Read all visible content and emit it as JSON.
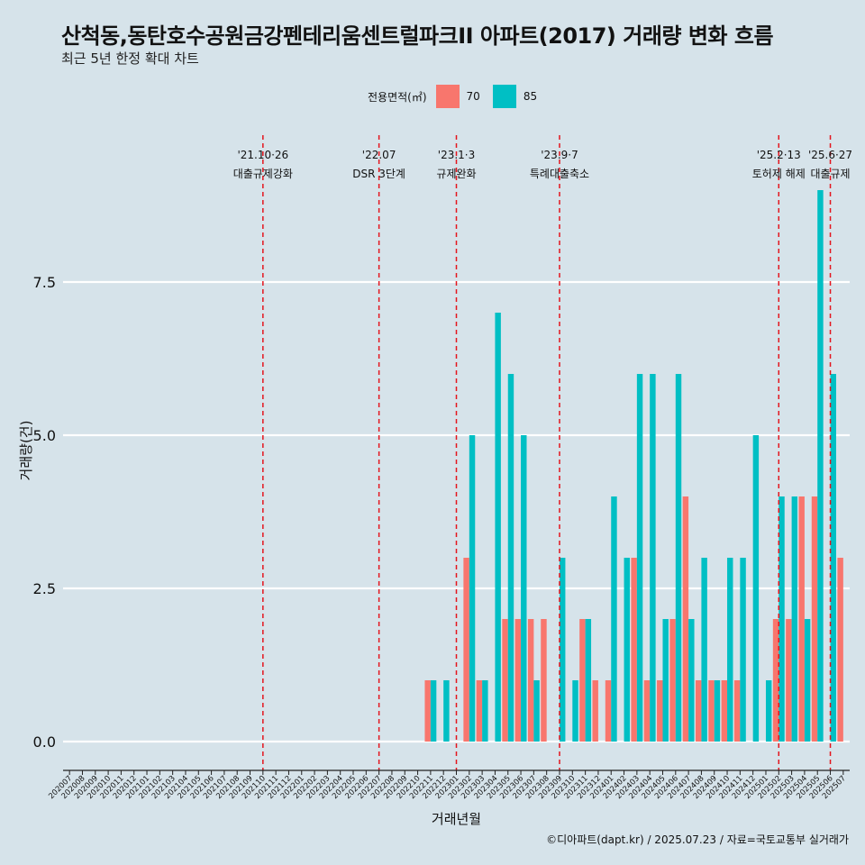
{
  "title": "산척동,동탄호수공원금강펜테리움센트럴파크II 아파트(2017) 거래량 변화 흐름",
  "subtitle": "최근 5년 한정 확대 차트",
  "legend": {
    "title": "전용면적(㎡)",
    "items": [
      {
        "label": "70",
        "color": "#f8766d"
      },
      {
        "label": "85",
        "color": "#00bfc4"
      }
    ]
  },
  "footer": "©디아파트(dapt.kr) / 2025.07.23 / 자료=국토교통부 실거래가",
  "chart_data": {
    "type": "bar",
    "title": "산척동,동탄호수공원금강펜테리움센트럴파크II 아파트(2017) 거래량 변화 흐름",
    "subtitle": "최근 5년 한정 확대 차트",
    "xlabel": "거래년월",
    "ylabel": "거래량(건)",
    "ylim": [
      -0.4,
      9.7
    ],
    "yticks": [
      0.0,
      2.5,
      5.0,
      7.5
    ],
    "ytick_labels": [
      "0.0",
      "2.5",
      "5.0",
      "7.5"
    ],
    "grid": true,
    "legend_position": "top",
    "categories": [
      "202007",
      "202008",
      "202009",
      "202010",
      "202011",
      "202012",
      "202101",
      "202102",
      "202103",
      "202104",
      "202105",
      "202106",
      "202107",
      "202108",
      "202109",
      "202110",
      "202111",
      "202112",
      "202201",
      "202202",
      "202203",
      "202204",
      "202205",
      "202206",
      "202207",
      "202208",
      "202209",
      "202210",
      "202211",
      "202212",
      "202301",
      "202302",
      "202303",
      "202304",
      "202305",
      "202306",
      "202307",
      "202308",
      "202309",
      "202310",
      "202311",
      "202312",
      "202401",
      "202402",
      "202403",
      "202404",
      "202405",
      "202406",
      "202407",
      "202408",
      "202409",
      "202410",
      "202411",
      "202412",
      "202501",
      "202502",
      "202503",
      "202504",
      "202505",
      "202506",
      "202507"
    ],
    "series": [
      {
        "name": "70",
        "color": "#f8766d",
        "values": [
          0,
          0,
          0,
          0,
          0,
          0,
          0,
          0,
          0,
          0,
          0,
          0,
          0,
          0,
          0,
          0,
          0,
          0,
          0,
          0,
          0,
          0,
          0,
          0,
          0,
          0,
          0,
          0,
          1,
          0,
          0,
          3,
          1,
          0,
          2,
          2,
          2,
          2,
          0,
          0,
          2,
          1,
          1,
          0,
          3,
          1,
          1,
          2,
          4,
          1,
          1,
          1,
          1,
          0,
          0,
          2,
          2,
          4,
          4,
          0,
          3
        ]
      },
      {
        "name": "85",
        "color": "#00bfc4",
        "values": [
          0,
          0,
          0,
          0,
          0,
          0,
          0,
          0,
          0,
          0,
          0,
          0,
          0,
          0,
          0,
          0,
          0,
          0,
          0,
          0,
          0,
          0,
          0,
          0,
          0,
          0,
          0,
          0,
          1,
          1,
          0,
          5,
          1,
          7,
          6,
          5,
          1,
          0,
          3,
          1,
          2,
          0,
          4,
          3,
          6,
          6,
          2,
          6,
          2,
          3,
          1,
          3,
          3,
          5,
          1,
          4,
          4,
          2,
          9,
          6,
          0
        ]
      }
    ],
    "annotations": [
      {
        "x": "202110",
        "line1": "'21.10·26",
        "line2": "대출규제강화"
      },
      {
        "x": "202207",
        "line1": "'22.07",
        "line2": "DSR 3단계"
      },
      {
        "x": "202301",
        "line1": "'23.1·3",
        "line2": "규제완화"
      },
      {
        "x": "202309",
        "line1": "'23.9·7",
        "line2": "특례대출축소"
      },
      {
        "x": "202502",
        "line1": "'25.2·13",
        "line2": "토허제 해제"
      },
      {
        "x": "202506",
        "line1": "'25.6·27",
        "line2": "대출규제"
      }
    ]
  }
}
